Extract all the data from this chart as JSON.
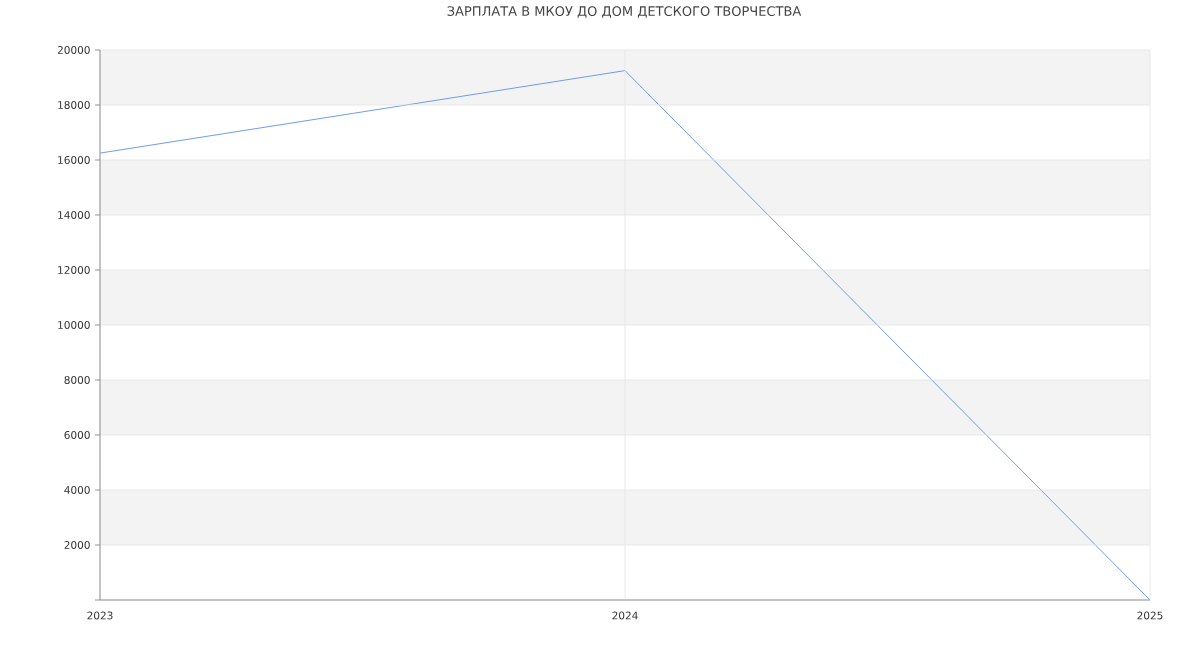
{
  "chart_data": {
    "type": "line",
    "title": "ЗАРПЛАТА В МКОУ ДО ДОМ ДЕТСКОГО ТВОРЧЕСТВА",
    "x": [
      2023,
      2024,
      2025
    ],
    "series": [
      {
        "color": "#6d9eeb",
        "values": [
          16250,
          19250,
          0
        ]
      }
    ],
    "xlim": [
      2023,
      2025
    ],
    "xticks": [
      2023,
      2024,
      2025
    ],
    "ylim": [
      0,
      20000
    ],
    "yticks": [
      {
        "value": 0,
        "label": null
      },
      2000,
      4000,
      6000,
      8000,
      10000,
      12000,
      14000,
      16000,
      18000,
      20000
    ],
    "grid": true,
    "marker": "none",
    "line_style": "solid"
  }
}
